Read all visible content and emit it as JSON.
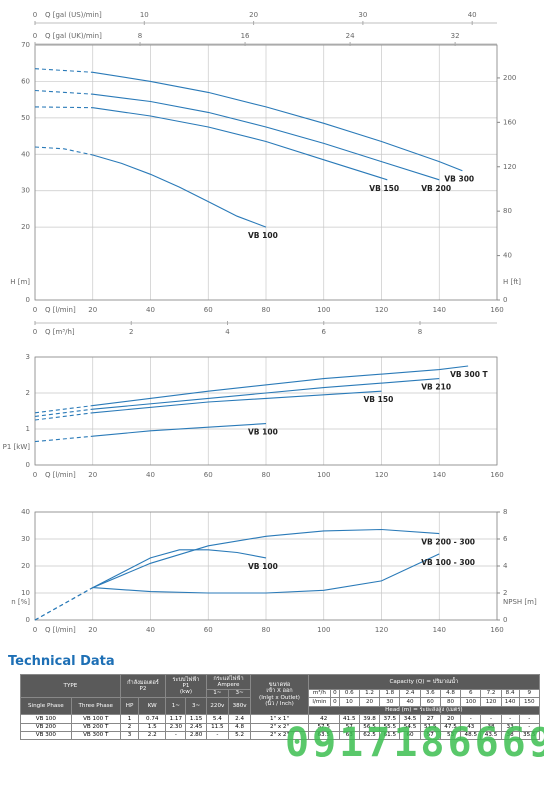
{
  "chart_data": [
    {
      "type": "line",
      "xlabel": "Q [l/min]",
      "ylabel": "H [m]",
      "y2label": "H [ft]",
      "xlim": [
        0,
        160
      ],
      "xticks": [
        0,
        20,
        40,
        60,
        80,
        100,
        120,
        140,
        160
      ],
      "ylim": [
        0,
        70
      ],
      "yticks": [
        0,
        20,
        30,
        40,
        50,
        60,
        70
      ],
      "y2lim": [
        0,
        229.66
      ],
      "y2ticks": [
        0,
        40,
        80,
        120,
        160,
        200
      ],
      "grid": true,
      "dash_until_x": 20,
      "color": "#2a7ab8",
      "extra_x_axes": [
        {
          "label": "Q [gal (US)/min]",
          "side": "top",
          "lim": [
            0,
            42.27
          ],
          "ticks": [
            0,
            10,
            20,
            30,
            40
          ]
        },
        {
          "label": "Q [gal (UK)/min]",
          "side": "top",
          "lim": [
            0,
            35.19
          ],
          "ticks": [
            0,
            8,
            16,
            24,
            32
          ]
        },
        {
          "label": "Q [m³/h]",
          "side": "bottom",
          "lim": [
            0,
            9.6
          ],
          "ticks": [
            0,
            2,
            4,
            6,
            8
          ]
        }
      ],
      "series": [
        {
          "name": "VB 100",
          "x": [
            0,
            10,
            20,
            30,
            40,
            50,
            60,
            70,
            80
          ],
          "values": [
            42,
            41.5,
            39.8,
            37.5,
            34.5,
            31,
            27,
            23,
            20
          ]
        },
        {
          "name": "VB 150",
          "x": [
            0,
            20,
            40,
            60,
            80,
            100,
            122
          ],
          "values": [
            53,
            52.8,
            50.5,
            47.5,
            43.5,
            38.5,
            33
          ]
        },
        {
          "name": "VB 200",
          "x": [
            0,
            20,
            40,
            60,
            80,
            100,
            120,
            140
          ],
          "values": [
            57.5,
            56.5,
            54.5,
            51.5,
            47.5,
            43,
            38,
            33
          ]
        },
        {
          "name": "VB 300",
          "x": [
            0,
            20,
            40,
            60,
            80,
            100,
            120,
            140,
            148
          ],
          "values": [
            63.5,
            62.5,
            60,
            57,
            53,
            48.5,
            43.5,
            38,
            35.5
          ]
        }
      ]
    },
    {
      "type": "line",
      "xlabel": "Q [l/min]",
      "ylabel": "P1 [kW]",
      "xlim": [
        0,
        160
      ],
      "xticks": [
        0,
        20,
        40,
        60,
        80,
        100,
        120,
        140,
        160
      ],
      "ylim": [
        0,
        3
      ],
      "yticks": [
        0,
        1,
        2,
        3
      ],
      "grid": true,
      "dash_until_x": 20,
      "color": "#2a7ab8",
      "series": [
        {
          "name": "VB 300 T",
          "x": [
            0,
            20,
            60,
            100,
            140,
            150
          ],
          "values": [
            1.45,
            1.65,
            2.05,
            2.4,
            2.65,
            2.75
          ]
        },
        {
          "name": "VB 210",
          "x": [
            0,
            20,
            60,
            100,
            140
          ],
          "values": [
            1.35,
            1.55,
            1.85,
            2.15,
            2.4
          ]
        },
        {
          "name": "VB 150",
          "x": [
            0,
            20,
            60,
            100,
            120
          ],
          "values": [
            1.25,
            1.45,
            1.75,
            1.95,
            2.05
          ]
        },
        {
          "name": "VB 100",
          "x": [
            0,
            20,
            40,
            60,
            80
          ],
          "values": [
            0.65,
            0.8,
            0.95,
            1.05,
            1.15
          ]
        }
      ]
    },
    {
      "type": "line",
      "xlabel": "Q [l/min]",
      "ylabel": "n [%]",
      "y2label": "NPSH [m]",
      "xlim": [
        0,
        160
      ],
      "xticks": [
        0,
        20,
        40,
        60,
        80,
        100,
        120,
        140,
        160
      ],
      "ylim": [
        0,
        40
      ],
      "yticks": [
        0,
        10,
        20,
        30,
        40
      ],
      "y2lim": [
        0,
        8
      ],
      "y2ticks": [
        0,
        2,
        4,
        6,
        8
      ],
      "grid": true,
      "dash_until_x": 20,
      "color": "#2a7ab8",
      "series": [
        {
          "name": "VB 100",
          "x": [
            0,
            20,
            40,
            50,
            60,
            70,
            80
          ],
          "values": [
            0,
            12,
            23,
            26,
            26,
            25,
            23
          ]
        },
        {
          "name": "VB 200 - 300",
          "x": [
            0,
            20,
            40,
            60,
            80,
            100,
            120,
            140
          ],
          "values": [
            0,
            12,
            21,
            27.5,
            31,
            33,
            33.5,
            32
          ]
        },
        {
          "name": "VB 100 - 300",
          "axis": "y2",
          "x": [
            20,
            40,
            60,
            80,
            100,
            120,
            140
          ],
          "values": [
            2.4,
            2.1,
            2.0,
            2.0,
            2.2,
            2.9,
            4.9
          ]
        }
      ]
    }
  ],
  "table": {
    "title": "Technical Data",
    "type": "TYPE",
    "p2": "กำลังมอเตอร์\nP2",
    "p1": "ระบบไฟฟ้า\nP1\n(kw)",
    "amp": "กระแสไฟฟ้า\nAmpere",
    "pipe": "ขนาดท่อ\nเข้า X ออก\n(Inlet x Outlet)\n(นิ้ว / Inch)",
    "capacity": "Capacity (Q) = ปริมาณน้ำ",
    "m3h": "m³/h",
    "lmin": "l/min",
    "head": "Head (m) = ระยะส่งสูง (เมตร)",
    "amp_1": "1~",
    "amp_3": "3~",
    "single": "Single Phase",
    "three": "Three Phase",
    "hp": "HP",
    "kw": "KW",
    "p1_1": "1~",
    "p1_3": "3~",
    "v220": "220v",
    "v380": "380v",
    "m3h_values": [
      "0",
      "0.6",
      "1.2",
      "1.8",
      "2.4",
      "3.6",
      "4.8",
      "6",
      "7.2",
      "8.4",
      "9"
    ],
    "lmin_values": [
      "0",
      "10",
      "20",
      "30",
      "40",
      "60",
      "80",
      "100",
      "120",
      "140",
      "150"
    ],
    "rows": [
      [
        "VB 100",
        "VB 100 T",
        "1",
        "0.74",
        "1.17",
        "1.15",
        "5.4",
        "2.4",
        "1\" x 1\"",
        "42",
        "41.5",
        "39.8",
        "37.5",
        "34.5",
        "27",
        "20",
        "-",
        "-",
        "-",
        "-"
      ],
      [
        "VB 200",
        "VB 200 T",
        "2",
        "1.5",
        "2.30",
        "2.45",
        "11.5",
        "4.8",
        "2\" x 2\"",
        "57.5",
        "57",
        "56.5",
        "55.5",
        "54.5",
        "51.5",
        "47.5",
        "43",
        "38",
        "33",
        "-"
      ],
      [
        "VB 300",
        "VB 300 T",
        "3",
        "2.2",
        "-",
        "2.80",
        "-",
        "5.2",
        "2\" x 2\"",
        "63.5",
        "63",
        "62.5",
        "61.5",
        "60",
        "57",
        "53",
        "48.5",
        "43.5",
        "38",
        "35.5"
      ]
    ]
  },
  "watermark": "0917186669"
}
